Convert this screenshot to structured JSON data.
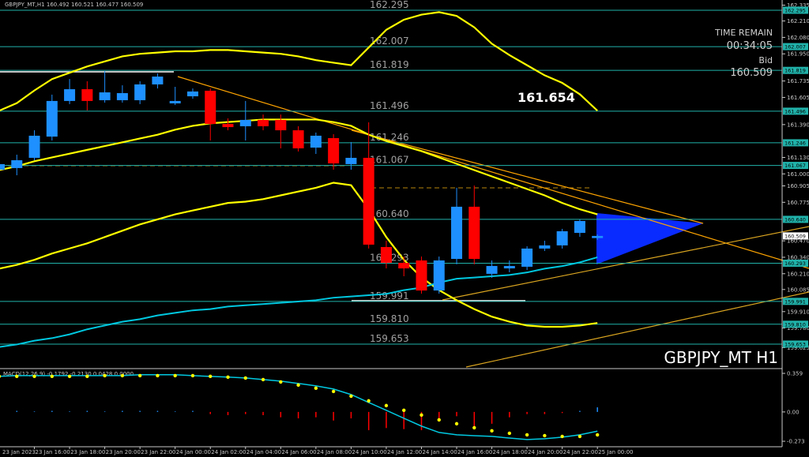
{
  "chart_data": [
    {
      "type": "candlestick",
      "title": "GBPJPY_MT,H1",
      "categories": [
        "23 Jan 2023",
        null,
        "23 Jan 16:00",
        null,
        "23 Jan 18:00",
        null,
        "23 Jan 20:00",
        null,
        "23 Jan 22:00",
        null,
        "24 Jan 00:00",
        null,
        "24 Jan 02:00",
        null,
        "24 Jan 04:00",
        null,
        "24 Jan 06:00",
        null,
        "24 Jan 08:00",
        null,
        "24 Jan 10:00",
        null,
        "24 Jan 12:00",
        null,
        "24 Jan 14:00",
        null,
        "24 Jan 16:00",
        null,
        "24 Jan 18:00",
        null,
        "24 Jan 20:00",
        null,
        "24 Jan 22:00",
        null,
        "25 Jan 00:00"
      ],
      "open": [
        161.033,
        161.046,
        161.127,
        161.295,
        161.577,
        161.67,
        161.583,
        161.583,
        161.583,
        161.708,
        161.558,
        161.614,
        161.658,
        161.395,
        161.377,
        161.427,
        161.427,
        161.345,
        161.208,
        161.283,
        161.077,
        161.127,
        160.421,
        160.296,
        160.315,
        160.077,
        160.327,
        160.74,
        160.209,
        160.252,
        160.265,
        160.409,
        160.434,
        160.533,
        160.492
      ],
      "high": [
        161.096,
        161.152,
        161.345,
        161.627,
        161.751,
        161.733,
        161.814,
        161.701,
        161.733,
        161.795,
        161.689,
        161.676,
        161.676,
        161.439,
        161.577,
        161.47,
        161.47,
        161.377,
        161.327,
        161.314,
        161.252,
        161.408,
        160.471,
        160.346,
        160.346,
        160.346,
        160.89,
        160.908,
        160.315,
        160.315,
        160.427,
        160.471,
        160.565,
        160.64,
        160.521
      ],
      "low": [
        161.002,
        160.989,
        161.108,
        161.264,
        161.552,
        161.502,
        161.564,
        161.564,
        161.552,
        161.676,
        161.545,
        161.595,
        161.264,
        161.345,
        161.264,
        161.345,
        161.202,
        161.177,
        161.158,
        161.033,
        161.033,
        160.409,
        160.252,
        160.19,
        160.052,
        160.052,
        160.284,
        160.284,
        160.177,
        160.221,
        160.24,
        160.39,
        160.409,
        160.502,
        160.477
      ],
      "close": [
        161.077,
        161.108,
        161.302,
        161.577,
        161.67,
        161.577,
        161.645,
        161.639,
        161.708,
        161.77,
        161.577,
        161.652,
        161.395,
        161.37,
        161.427,
        161.377,
        161.345,
        161.202,
        161.302,
        161.083,
        161.127,
        160.44,
        160.296,
        160.252,
        160.077,
        160.315,
        160.74,
        160.327,
        160.271,
        160.271,
        160.409,
        160.434,
        160.546,
        160.627,
        160.509
      ],
      "up_color": "#1e90ff",
      "down_color": "#ff0000",
      "ylim": [
        159.459,
        162.376
      ],
      "yticks": [
        162.335,
        {
          "value": 162.21,
          "label": "162.210"
        },
        {
          "value": 162.08,
          "label": "162.080"
        },
        {
          "value": 161.95,
          "label": "161.950"
        },
        161.735,
        161.605,
        {
          "value": 161.39,
          "label": "161.390"
        },
        {
          "value": 161.13,
          "label": "161.130"
        },
        {
          "value": 161,
          "label": "161.000"
        },
        160.905,
        160.775,
        {
          "value": 160.47,
          "label": "160.470"
        },
        {
          "value": 160.34,
          "label": "160.340"
        },
        {
          "value": 160.21,
          "label": "160.210"
        },
        160.085,
        {
          "value": 159.91,
          "label": "159.910"
        },
        {
          "value": 159.78,
          "label": "159.780"
        },
        159.625
      ],
      "levels": [
        162.295,
        162.007,
        161.819,
        161.496,
        161.246,
        161.067,
        {
          "value": 160.64,
          "label": "160.640"
        },
        160.293,
        159.991,
        {
          "value": 159.81,
          "label": "159.810"
        },
        159.653
      ],
      "level_color": "#20b2aa",
      "overlays": [
        {
          "color": "#ffff00",
          "values": [
            161.5,
            161.56,
            161.66,
            161.75,
            161.8,
            161.85,
            161.89,
            161.93,
            161.95,
            161.96,
            161.97,
            161.97,
            161.98,
            161.98,
            161.97,
            161.96,
            161.95,
            161.93,
            161.9,
            161.88,
            161.86,
            162.0,
            162.14,
            162.22,
            162.26,
            162.28,
            162.25,
            162.16,
            162.03,
            161.94,
            161.86,
            161.78,
            161.72,
            161.63,
            161.5
          ]
        },
        {
          "color": "#ffff00",
          "values": [
            161.03,
            161.06,
            161.1,
            161.13,
            161.16,
            161.19,
            161.22,
            161.25,
            161.28,
            161.31,
            161.35,
            161.38,
            161.4,
            161.41,
            161.42,
            161.43,
            161.43,
            161.43,
            161.43,
            161.41,
            161.38,
            161.31,
            161.26,
            161.22,
            161.18,
            161.13,
            161.08,
            161.03,
            160.98,
            160.93,
            160.88,
            160.83,
            160.77,
            160.72,
            160.68
          ]
        },
        {
          "color": "#ffff00",
          "values": [
            160.25,
            160.28,
            160.32,
            160.37,
            160.41,
            160.45,
            160.5,
            160.55,
            160.6,
            160.64,
            160.68,
            160.71,
            160.74,
            160.77,
            160.78,
            160.8,
            160.83,
            160.86,
            160.89,
            160.93,
            160.91,
            160.72,
            160.5,
            160.32,
            160.18,
            160.08,
            160.0,
            159.93,
            159.87,
            159.83,
            159.8,
            159.79,
            159.79,
            159.8,
            159.82
          ]
        },
        {
          "color": "#00c8e0",
          "values": [
            159.63,
            159.65,
            159.68,
            159.7,
            159.73,
            159.77,
            159.8,
            159.83,
            159.85,
            159.88,
            159.9,
            159.92,
            159.93,
            159.95,
            159.96,
            159.97,
            159.98,
            159.99,
            160.0,
            160.02,
            160.03,
            160.04,
            160.05,
            160.08,
            160.1,
            160.14,
            160.17,
            160.18,
            160.19,
            160.2,
            160.22,
            160.25,
            160.27,
            160.3,
            160.34
          ]
        }
      ]
    },
    {
      "type": "macd",
      "title": "MACD(12,26,9) -0.1792 -0.2130 0.0428 0.0000",
      "series": [
        {
          "color": "#00c8e0",
          "values": [
            0.331,
            0.338,
            0.338,
            0.338,
            0.338,
            0.338,
            0.338,
            0.338,
            0.346,
            0.346,
            0.346,
            0.338,
            0.331,
            0.324,
            0.316,
            0.301,
            0.287,
            0.265,
            0.243,
            0.213,
            0.162,
            0.088,
            0.015,
            -0.059,
            -0.132,
            -0.191,
            -0.213,
            -0.221,
            -0.228,
            -0.243,
            -0.257,
            -0.25,
            -0.235,
            -0.213,
            -0.1792
          ]
        },
        {
          "color": "#ffff00",
          "style": "dots",
          "values": [
            0.331,
            0.331,
            0.331,
            0.331,
            0.331,
            0.331,
            0.338,
            0.338,
            0.338,
            0.338,
            0.338,
            0.338,
            0.331,
            0.324,
            0.316,
            0.301,
            0.279,
            0.25,
            0.221,
            0.191,
            0.147,
            0.103,
            0.059,
            0.015,
            -0.029,
            -0.074,
            -0.11,
            -0.147,
            -0.176,
            -0.199,
            -0.213,
            -0.221,
            -0.228,
            -0.228,
            -0.213
          ]
        }
      ],
      "histogram": {
        "up_color": "#1e90ff",
        "down_color": "#ff0000",
        "values": [
          0.01,
          0.01,
          0.005,
          0.01,
          0.005,
          0.01,
          0.005,
          0.01,
          0.01,
          0.01,
          0.005,
          0.01,
          -0.02,
          -0.03,
          -0.02,
          -0.03,
          -0.05,
          -0.06,
          -0.05,
          -0.08,
          -0.06,
          -0.17,
          -0.15,
          -0.16,
          -0.17,
          -0.09,
          -0.04,
          -0.15,
          -0.11,
          -0.05,
          -0.02,
          -0.02,
          -0.01,
          0.01,
          0.0428
        ]
      },
      "ylim": [
        -0.324,
        0.396
      ],
      "yticks": [
        0.359,
        {
          "value": 0,
          "label": "0.00"
        },
        -0.273
      ]
    }
  ],
  "info": {
    "time_remain_label": "TIME REMAIN",
    "time_remain": "00:34:05",
    "bid_label": "Bid",
    "price_note": "161.654",
    "watermark": "GBPJPY_MT H1"
  }
}
